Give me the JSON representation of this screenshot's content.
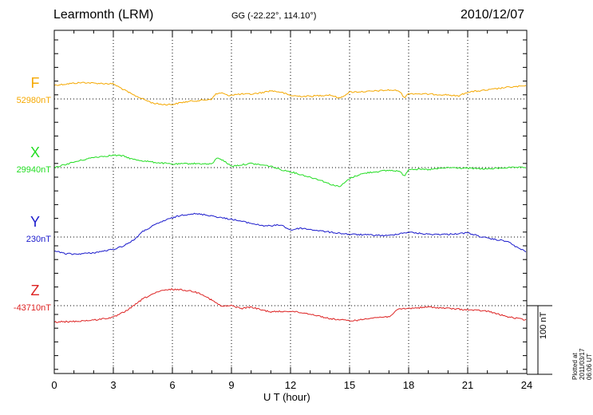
{
  "header": {
    "station": "Learmonth (LRM)",
    "coords": "GG (-22.22°, 114.10°)",
    "date": "2010/12/07"
  },
  "chart_data": {
    "type": "line",
    "xlabel": "U T (hour)",
    "xlim": [
      0,
      24
    ],
    "xticks": [
      0,
      3,
      6,
      9,
      12,
      15,
      18,
      21,
      24
    ],
    "xtick_labels": [
      "0",
      "3",
      "6",
      "9",
      "12",
      "15",
      "18",
      "21",
      "24"
    ],
    "grid": true,
    "y_units": "nT",
    "scale_bar": {
      "value": 100,
      "label": "100 nT"
    },
    "series": [
      {
        "name": "F",
        "baseline_label": "52980nT",
        "baseline": 52980,
        "color": "#f5a800",
        "x": [
          0,
          1,
          1.5,
          2,
          3,
          3.5,
          4,
          4.5,
          5,
          5.5,
          6,
          6.5,
          7,
          7.5,
          8,
          8.2,
          8.5,
          8.8,
          9,
          9.5,
          10,
          10.5,
          11,
          11.5,
          12,
          12.5,
          13,
          14,
          14.5,
          15,
          16,
          17,
          17.5,
          17.8,
          18,
          19,
          20,
          20.5,
          21,
          22,
          23,
          24
        ],
        "y": [
          53000,
          53003,
          53004,
          53003,
          53002,
          52994,
          52986,
          52980,
          52974,
          52972,
          52972,
          52975,
          52977,
          52978,
          52980,
          52987,
          52989,
          52985,
          52986,
          52987,
          52987,
          52989,
          52992,
          52990,
          52985,
          52984,
          52984,
          52986,
          52981,
          52990,
          52991,
          52993,
          52992,
          52982,
          52988,
          52987,
          52986,
          52984,
          52990,
          52993,
          52997,
          52999
        ]
      },
      {
        "name": "X",
        "baseline_label": "29940nT",
        "baseline": 29940,
        "color": "#22dd22",
        "x": [
          0,
          1,
          2,
          3,
          3.5,
          4,
          5,
          6,
          7,
          8,
          8.3,
          8.6,
          9,
          10,
          11,
          11.5,
          12,
          12.5,
          13,
          13.5,
          14,
          14.5,
          15,
          15.5,
          16,
          17,
          17.5,
          17.8,
          18,
          19,
          20,
          21,
          22,
          23,
          24
        ],
        "y": [
          29940,
          29948,
          29955,
          29958,
          29957,
          29952,
          29948,
          29945,
          29946,
          29945,
          29955,
          29950,
          29942,
          29946,
          29942,
          29937,
          29934,
          29930,
          29926,
          29922,
          29916,
          29912,
          29924,
          29930,
          29933,
          29936,
          29935,
          29928,
          29938,
          29937,
          29940,
          29939,
          29938,
          29940,
          29940
        ]
      },
      {
        "name": "Y",
        "baseline_label": "230nT",
        "baseline": 230,
        "color": "#1a1acc",
        "x": [
          0,
          0.5,
          1,
          2,
          3,
          3.5,
          4,
          4.5,
          5,
          5.5,
          6,
          6.5,
          7,
          7.5,
          8,
          8.5,
          9,
          9.5,
          10,
          10.5,
          11,
          11.5,
          12,
          12.5,
          13,
          14,
          15,
          16,
          17,
          17.5,
          18,
          19,
          20,
          21,
          22,
          23,
          23.5,
          24
        ],
        "y": [
          210,
          206,
          205,
          207,
          212,
          217,
          225,
          238,
          246,
          253,
          258,
          262,
          264,
          263,
          261,
          258,
          256,
          253,
          250,
          247,
          246,
          248,
          240,
          243,
          241,
          237,
          234,
          233,
          232,
          235,
          237,
          234,
          234,
          236,
          228,
          224,
          215,
          208
        ]
      },
      {
        "name": "Z",
        "baseline_label": "-43710nT",
        "baseline": -43710,
        "color": "#dd2222",
        "x": [
          0,
          1,
          2,
          3,
          3.5,
          4,
          4.5,
          5,
          5.5,
          6,
          6.5,
          7,
          7.5,
          8,
          8.5,
          9,
          9.5,
          10,
          10.5,
          11,
          12,
          13,
          14,
          15,
          15.5,
          16,
          17,
          17.5,
          18,
          19,
          20,
          21,
          22,
          23,
          24
        ],
        "y": [
          -43734,
          -43733,
          -43731,
          -43727,
          -43720,
          -43711,
          -43700,
          -43693,
          -43688,
          -43686,
          -43687,
          -43689,
          -43693,
          -43702,
          -43711,
          -43710,
          -43714,
          -43712,
          -43716,
          -43719,
          -43718,
          -43722,
          -43729,
          -43732,
          -43731,
          -43728,
          -43726,
          -43715,
          -43714,
          -43712,
          -43714,
          -43716,
          -43718,
          -43726,
          -43731
        ]
      }
    ]
  },
  "footer": {
    "plotted": "Plotted at 2011/03/17 06:06 UT"
  }
}
